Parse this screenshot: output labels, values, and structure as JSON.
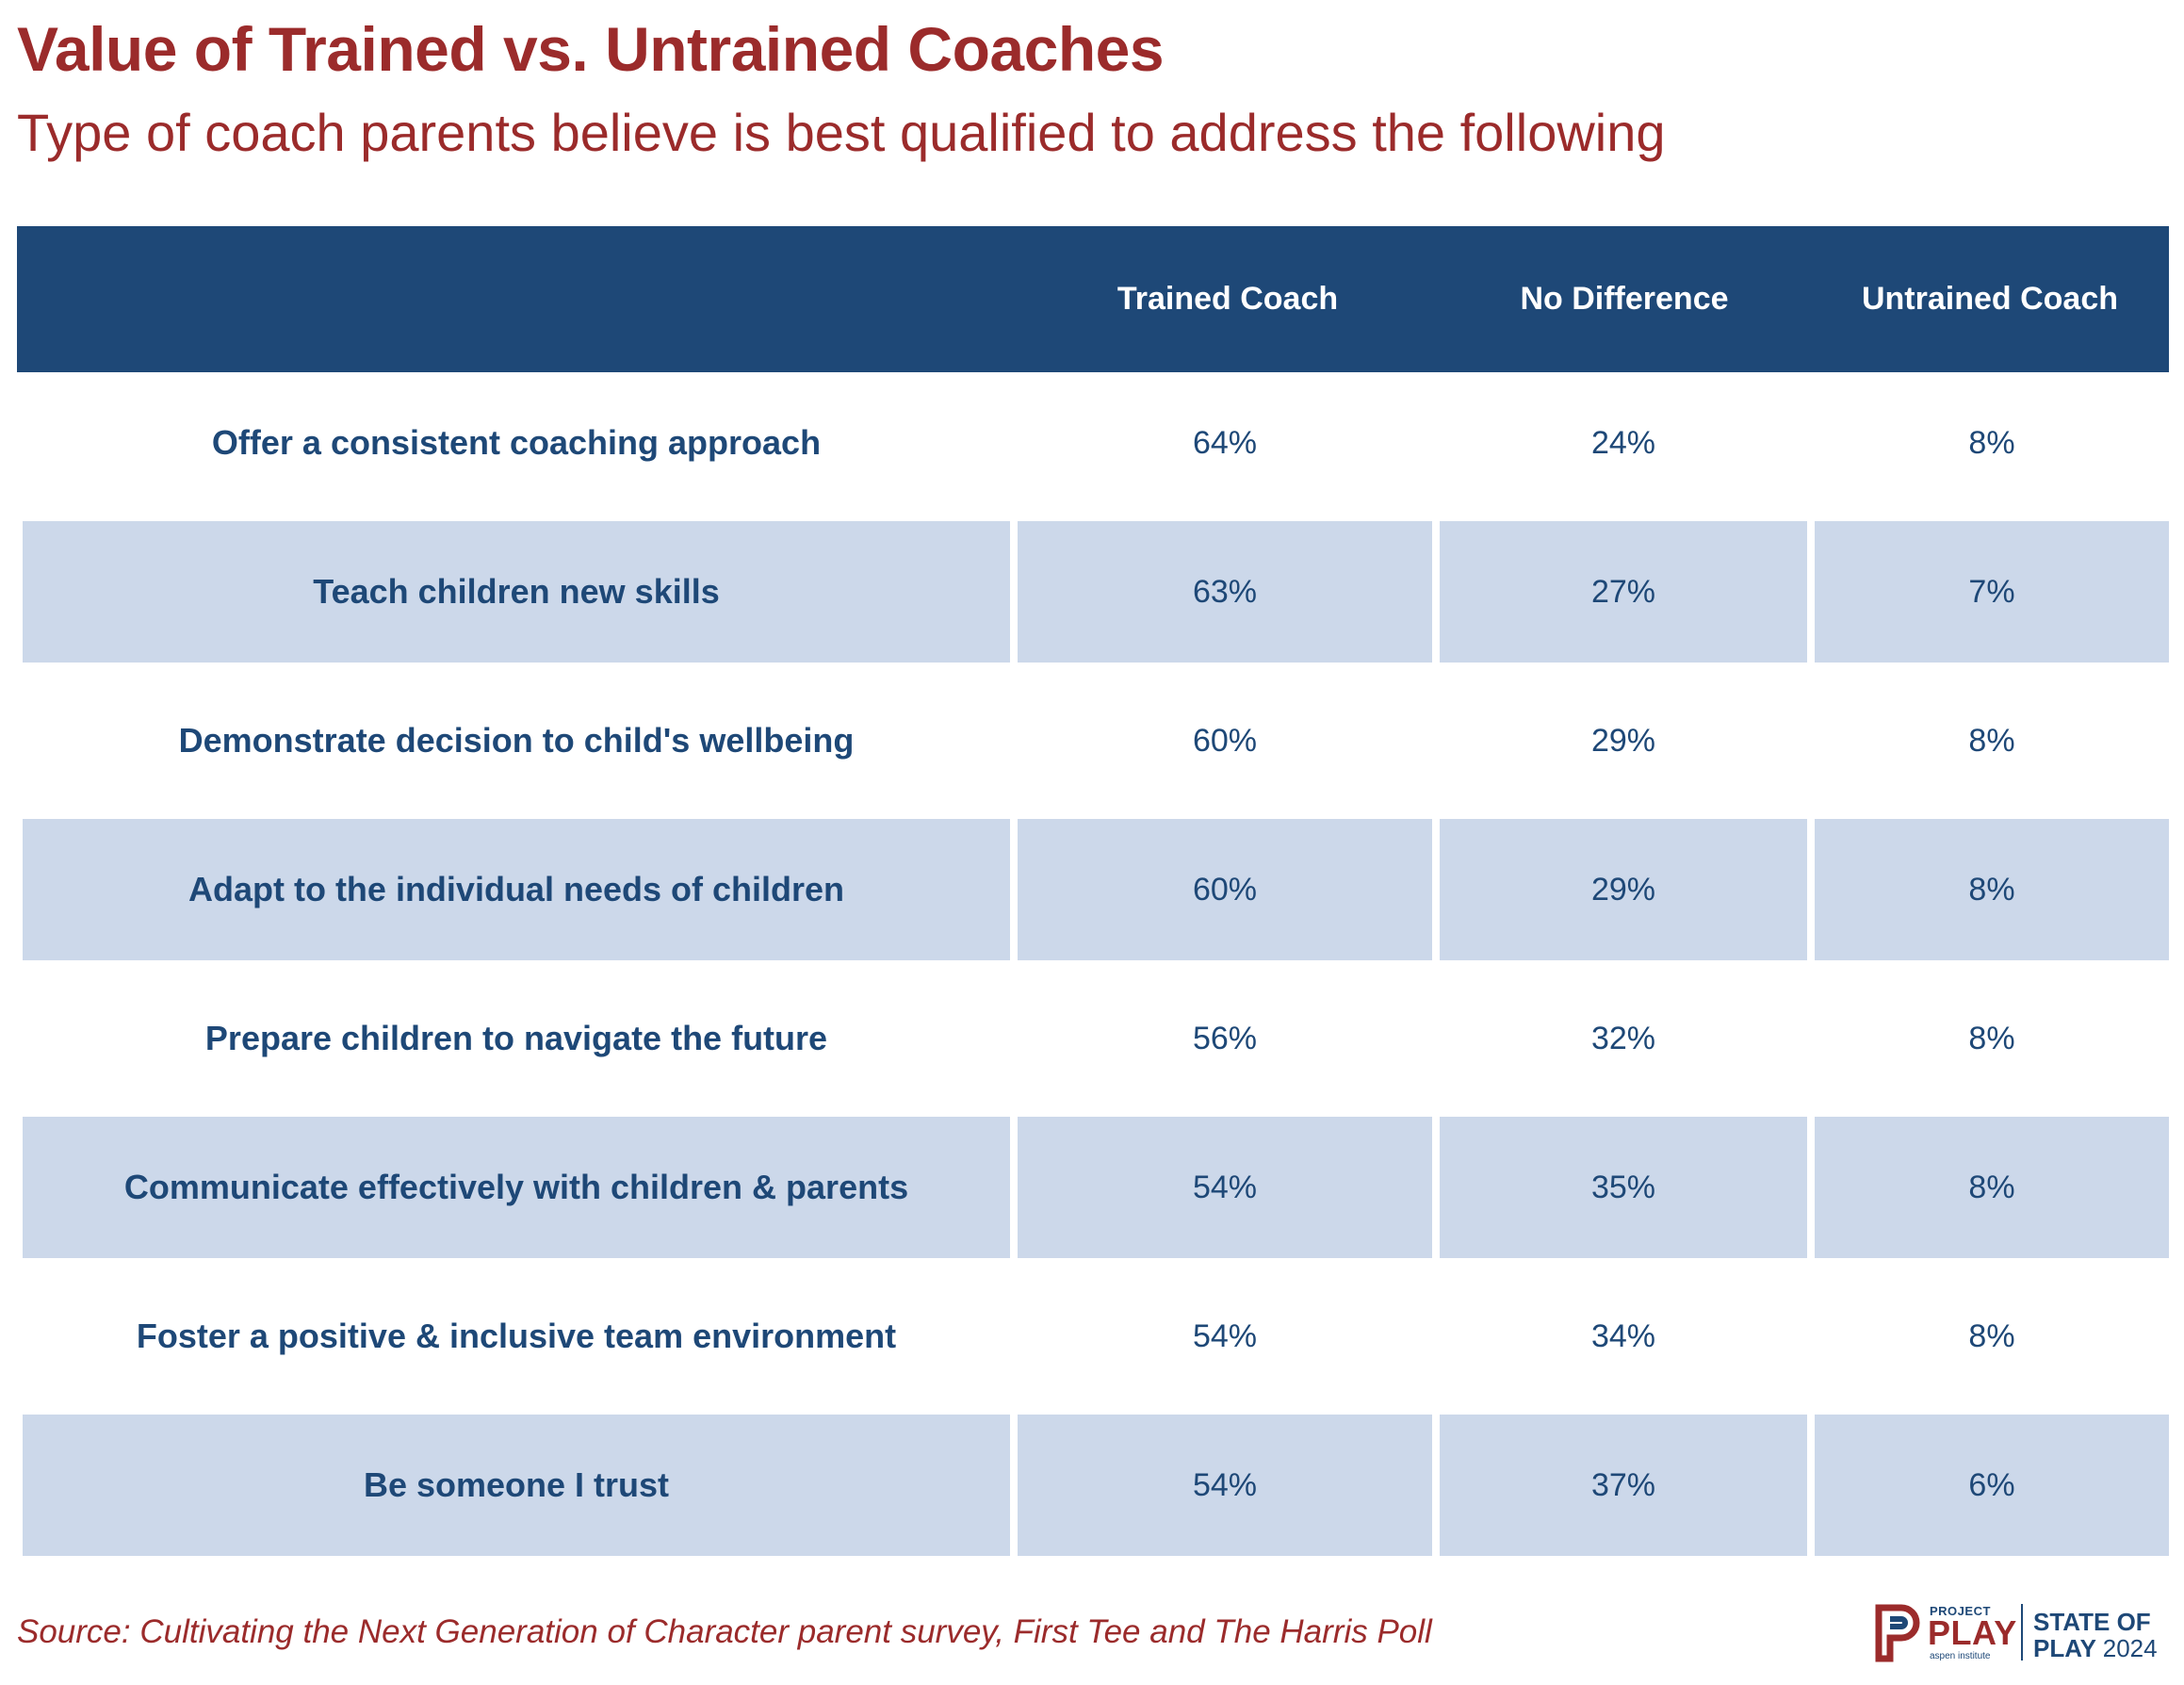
{
  "title": "Value of Trained vs. Untrained Coaches",
  "subtitle": "Type of coach parents believe is best qualified to address the following",
  "chart_data": {
    "type": "table",
    "columns": [
      "",
      "Trained Coach",
      "No Difference",
      "Untrained Coach"
    ],
    "rows": [
      {
        "label": "Offer a consistent coaching approach",
        "values": [
          "64%",
          "24%",
          "8%"
        ]
      },
      {
        "label": "Teach children new skills",
        "values": [
          "63%",
          "27%",
          "7%"
        ]
      },
      {
        "label": "Demonstrate decision to child's wellbeing",
        "values": [
          "60%",
          "29%",
          "8%"
        ]
      },
      {
        "label": "Adapt to the individual needs of children",
        "values": [
          "60%",
          "29%",
          "8%"
        ]
      },
      {
        "label": "Prepare children to navigate the future",
        "values": [
          "56%",
          "32%",
          "8%"
        ]
      },
      {
        "label": "Communicate effectively with children & parents",
        "values": [
          "54%",
          "35%",
          "8%"
        ]
      },
      {
        "label": "Foster a positive & inclusive team environment",
        "values": [
          "54%",
          "34%",
          "8%"
        ]
      },
      {
        "label": "Be someone I trust",
        "values": [
          "54%",
          "37%",
          "6%"
        ]
      }
    ]
  },
  "source": "Source: Cultivating the Next Generation of Character parent survey, First Tee and The Harris Poll",
  "logo": {
    "project": "PROJECT",
    "play": "PLAY",
    "aspen": "aspen institute",
    "state_of": "STATE OF",
    "play2": "PLAY",
    "year": "2024"
  },
  "colors": {
    "accent_red": "#9b2b2b",
    "header_navy": "#1e4877",
    "row_shade": "#ccd8ea"
  }
}
